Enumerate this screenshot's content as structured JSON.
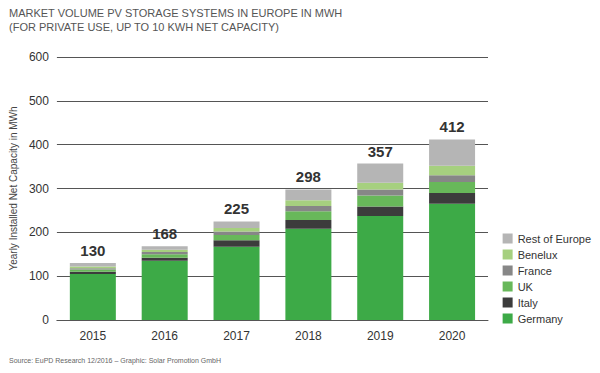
{
  "chart_data": {
    "type": "bar",
    "title": "MARKET VOLUME PV STORAGE SYSTEMS IN EUROPE IN MWH",
    "subtitle": "(FOR PRIVATE USE, UP TO 10 KWH NET CAPACITY)",
    "ylabel": "Yearly Installed Net Capacity in MWh",
    "source": "Source: EuPD Research 12/2016 – Graphic: Solar Promotion GmbH",
    "categories": [
      "2015",
      "2016",
      "2017",
      "2018",
      "2019",
      "2020"
    ],
    "series": [
      {
        "name": "Germany",
        "color": "#3daa47",
        "values": [
          105,
          135,
          167,
          208,
          237,
          265
        ]
      },
      {
        "name": "Italy",
        "color": "#3c3c3c",
        "values": [
          5,
          7,
          15,
          20,
          22,
          25
        ]
      },
      {
        "name": "UK",
        "color": "#68b85a",
        "values": [
          5,
          8,
          12,
          20,
          25,
          25
        ]
      },
      {
        "name": "France",
        "color": "#878787",
        "values": [
          3,
          5,
          8,
          12,
          14,
          15
        ]
      },
      {
        "name": "Benelux",
        "color": "#a6d07f",
        "values": [
          4,
          5,
          8,
          13,
          15,
          22
        ]
      },
      {
        "name": "Rest of Europe",
        "color": "#b5b5b5",
        "values": [
          8,
          8,
          15,
          25,
          44,
          60
        ]
      }
    ],
    "totals": [
      130,
      168,
      225,
      298,
      357,
      412
    ],
    "ylim": [
      0,
      600
    ],
    "yticks": [
      0,
      100,
      200,
      300,
      400,
      500,
      600
    ],
    "stacked": true,
    "grid": true,
    "legend": "right"
  }
}
